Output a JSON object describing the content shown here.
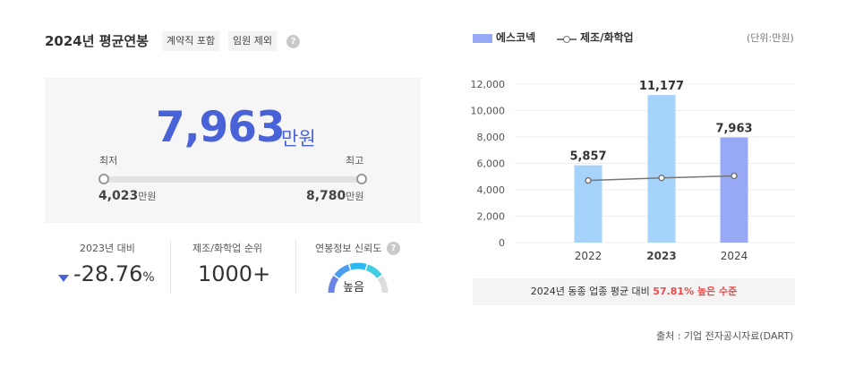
{
  "header": {
    "title": "2024년 평균연봉",
    "tag_contract": "계약직 포함",
    "tag_exec": "임원 제외",
    "help": "?"
  },
  "salary": {
    "value": "7,963",
    "unit": "만원",
    "min_label": "최저",
    "max_label": "최고",
    "min_value": "4,023",
    "max_value": "8,780",
    "value_unit": "만원"
  },
  "stats": {
    "yoy_label": "2023년 대비",
    "yoy_value": "-28.76",
    "yoy_unit": "%",
    "rank_label": "제조/화학업 순위",
    "rank_value": "1000+",
    "reliability_label": "연봉정보 신뢰도",
    "reliability_value": "높음",
    "reliability_level": 0.75
  },
  "legend": {
    "company": "에스코넥",
    "industry": "제조/화학업",
    "unit_note": "(단위:만원)"
  },
  "colors": {
    "accent": "#4a62d8",
    "bar_light": "#a6d3fb",
    "bar_current": "#97a8f5",
    "line": "#777777",
    "highlight": "#e94b4b",
    "gauge_colors": [
      "#6b83e6",
      "#4a9df0",
      "#2cb8f0",
      "#40cfe0",
      "#dddddd"
    ]
  },
  "chart_data": {
    "type": "bar",
    "categories": [
      "2022",
      "2023",
      "2024"
    ],
    "series": [
      {
        "name": "에스코넥",
        "type": "bar",
        "values": [
          5857,
          11177,
          7963
        ],
        "labels": [
          "5,857",
          "11,177",
          "7,963"
        ]
      },
      {
        "name": "제조/화학업",
        "type": "line",
        "values": [
          4700,
          4900,
          5050
        ]
      }
    ],
    "yticks": [
      "12,000",
      "10,000",
      "8,000",
      "6,000",
      "4,000",
      "2,000",
      "0"
    ],
    "ylim": [
      0,
      12000
    ],
    "grid": true
  },
  "compare": {
    "prefix": "2024년 동종 업종 평균 대비",
    "highlight": "57.81% 높은 수준"
  },
  "source": "출처 : 기업 전자공시자료(DART)"
}
